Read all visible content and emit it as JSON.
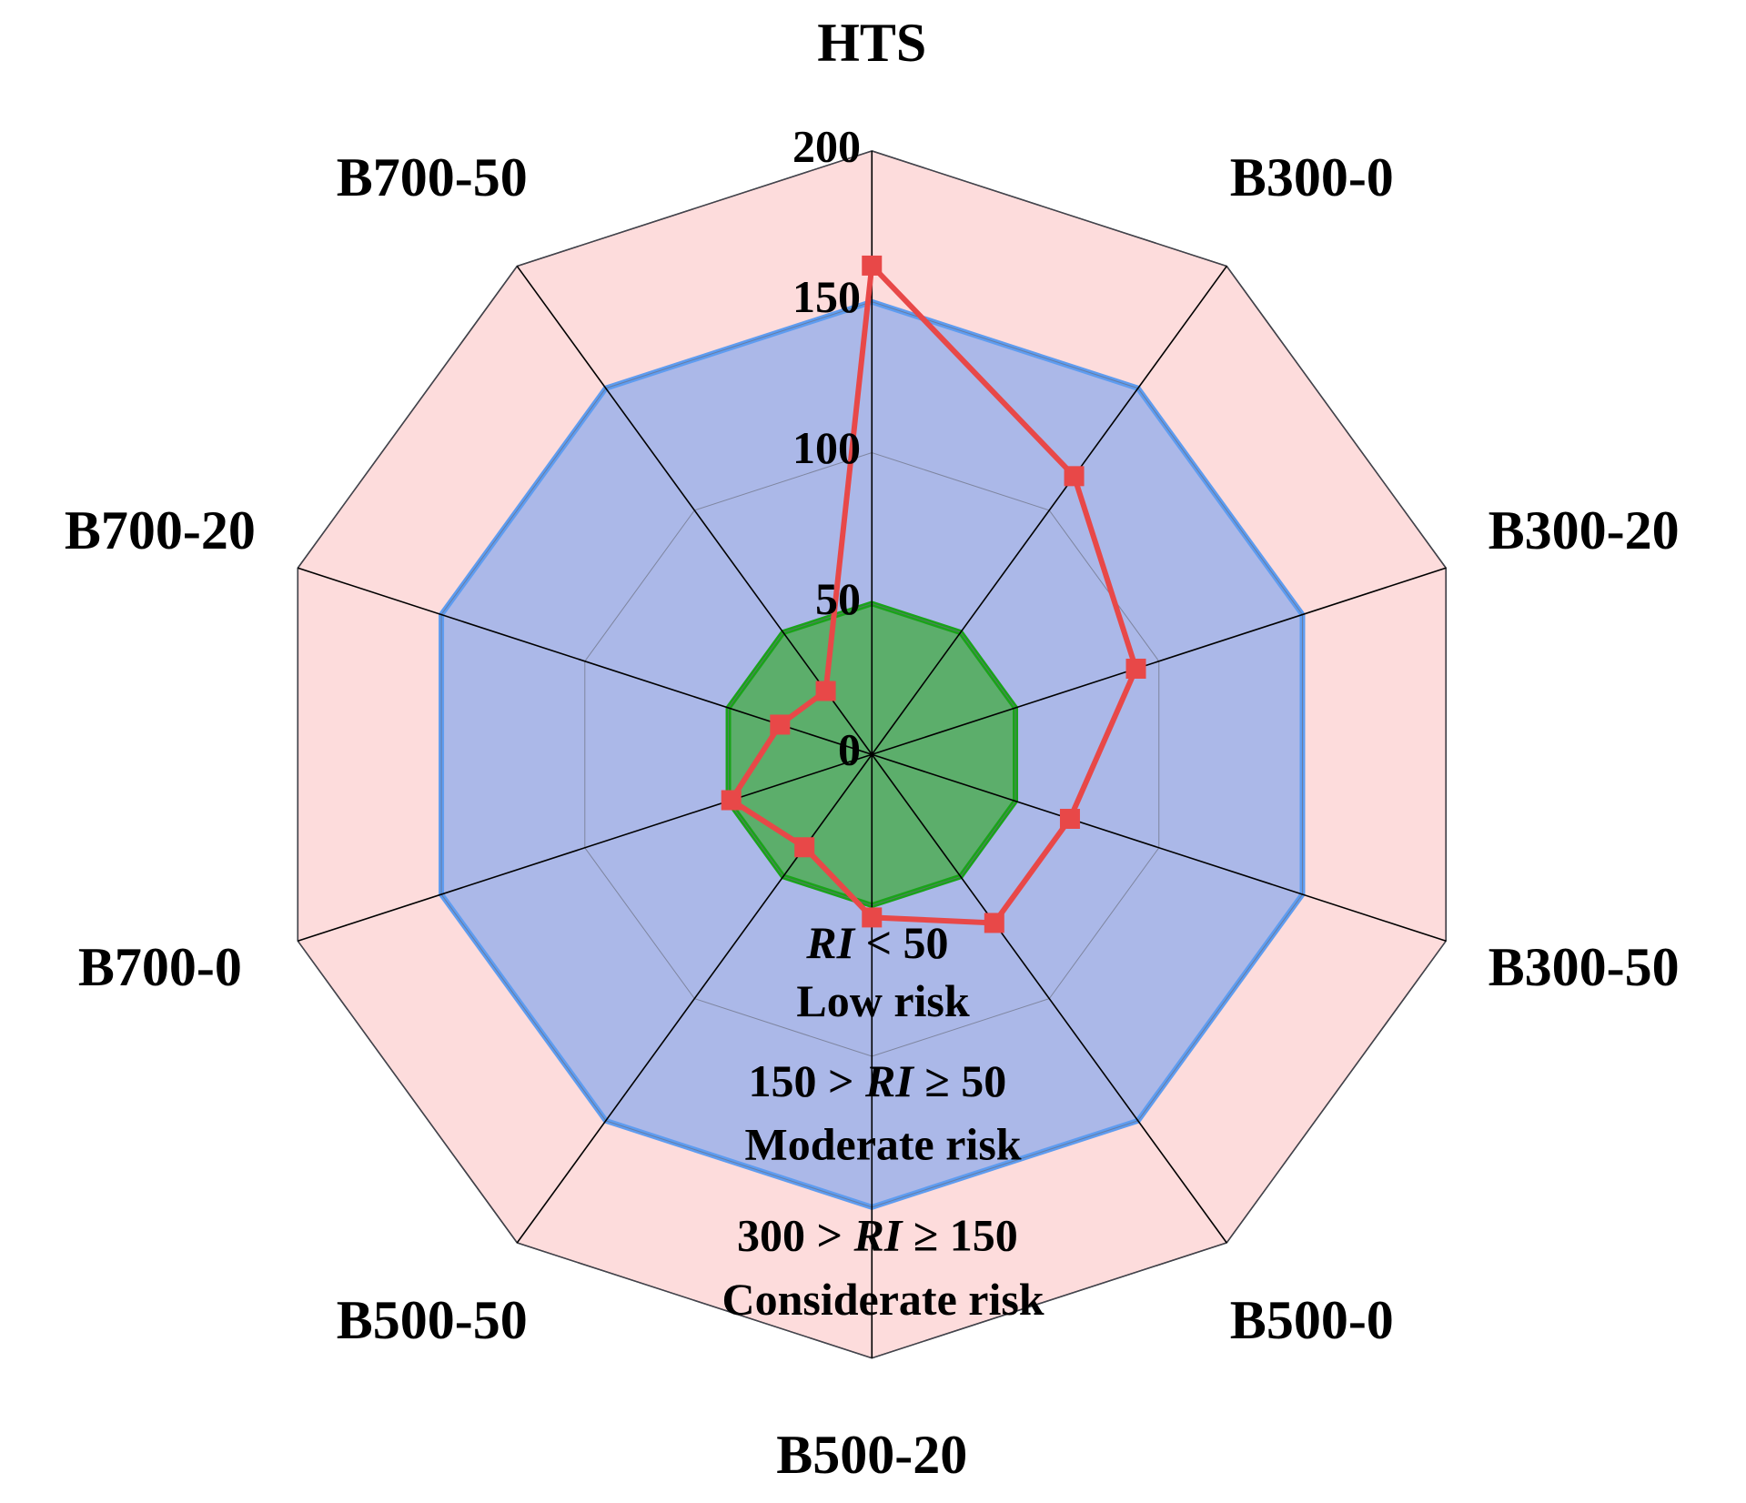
{
  "chart_data": {
    "type": "radar",
    "categories": [
      "HTS",
      "B300-0",
      "B300-20",
      "B300-50",
      "B500-0",
      "B500-20",
      "B500-50",
      "B700-0",
      "B700-20",
      "B700-50"
    ],
    "series": [
      {
        "color": "#e84848",
        "values": [
          162,
          114,
          92,
          69,
          69,
          54,
          38,
          49,
          32,
          26
        ]
      }
    ],
    "ylim": [
      0,
      200
    ],
    "yticks": [
      0,
      50,
      100,
      150,
      200
    ],
    "bands": [
      {
        "max": 50,
        "fill": "#5cae6b",
        "stroke": "#1aa31a",
        "range_label": [
          {
            "text": "RI",
            "italic": true
          },
          {
            "text": " < 50"
          }
        ],
        "risk": "Low risk"
      },
      {
        "max": 150,
        "fill": "#abb8e8",
        "stroke": "#5e9cf0",
        "range_label": [
          {
            "text": "150 > "
          },
          {
            "text": "RI",
            "italic": true
          },
          {
            "text": " ≥ 50"
          }
        ],
        "risk": "Moderate risk"
      },
      {
        "max": 200,
        "fill": "#fddcdc",
        "stroke": "#000000",
        "range_label": [
          {
            "text": "300 > "
          },
          {
            "text": "RI",
            "italic": true
          },
          {
            "text": " ≥ 150"
          }
        ],
        "risk": "Considerate risk"
      }
    ]
  }
}
